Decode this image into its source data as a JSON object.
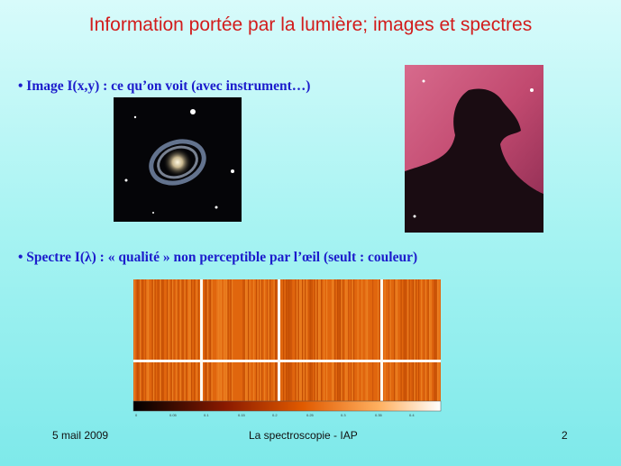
{
  "title": "Information portée par la lumière; images et spectres",
  "bullets": [
    "• Image I(x,y) : ce qu’on voit (avec instrument…)",
    "• Spectre I(λ) : « qualité » non perceptible par l’œil  (seult : couleur)"
  ],
  "colorbar": {
    "labels": [
      "0",
      "0.05",
      "0.1",
      "0.15",
      "0.2",
      "0.25",
      "0.3",
      "0.35",
      "0.4"
    ]
  },
  "footer": {
    "date": "5 mail 2009",
    "center": "La spectroscopie - IAP",
    "page": "2"
  }
}
